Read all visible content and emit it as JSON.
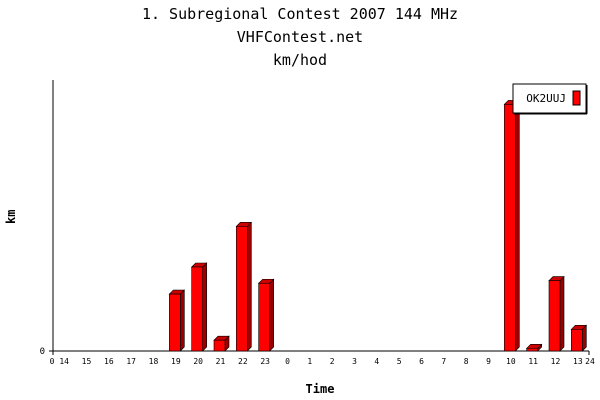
{
  "header": {
    "title1": "1. Subregional Contest 2007 144 MHz",
    "title2": "VHFContest.net",
    "title3": "km/hod"
  },
  "colors": {
    "bar_front": "#ff0000",
    "bar_side": "#990000",
    "bar_top": "#cc0000",
    "axis": "#000000"
  },
  "chart_data": {
    "type": "bar",
    "title": "1. Subregional Contest 2007 144 MHz",
    "subtitle": "VHFContest.net",
    "unit_label": "km/hod",
    "xlabel": "Time",
    "ylabel": "km",
    "y_tick_labels": [
      "0"
    ],
    "x_edge_labels": [
      "0",
      "24"
    ],
    "categories": [
      "14",
      "15",
      "16",
      "17",
      "18",
      "19",
      "20",
      "21",
      "22",
      "23",
      "0",
      "1",
      "2",
      "3",
      "4",
      "5",
      "6",
      "7",
      "8",
      "9",
      "10",
      "11",
      "12",
      "13"
    ],
    "series": [
      {
        "name": "OK2UUJ",
        "values": [
          0,
          0,
          0,
          0,
          0,
          21,
          31,
          4,
          46,
          25,
          0,
          0,
          0,
          0,
          0,
          0,
          0,
          0,
          0,
          0,
          91,
          1,
          26,
          8
        ]
      }
    ],
    "ylim": [
      0,
      100
    ],
    "grid": false,
    "legend_position": "top-right"
  }
}
